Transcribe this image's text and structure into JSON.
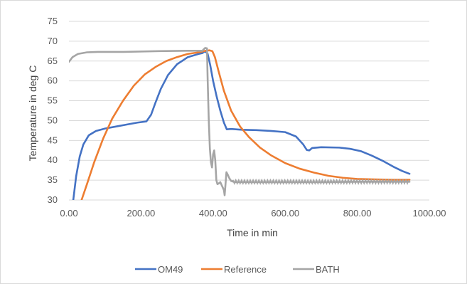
{
  "chart_data": {
    "type": "line",
    "title": "",
    "xlabel": "Time in min",
    "ylabel": "Temperature in deg C",
    "xlim": [
      0,
      1000
    ],
    "ylim": [
      30,
      75
    ],
    "x_ticks": [
      "0.00",
      "200.00",
      "400.00",
      "600.00",
      "800.00",
      "1000.00"
    ],
    "y_ticks": [
      "30",
      "35",
      "40",
      "45",
      "50",
      "55",
      "60",
      "65",
      "70",
      "75"
    ],
    "grid": "horizontal",
    "legend_position": "bottom",
    "series": [
      {
        "name": "OM49",
        "color": "#4472c4",
        "points": [
          [
            12,
            30
          ],
          [
            20,
            36
          ],
          [
            30,
            41
          ],
          [
            40,
            44
          ],
          [
            55,
            46.3
          ],
          [
            75,
            47.4
          ],
          [
            100,
            48
          ],
          [
            130,
            48.5
          ],
          [
            160,
            49
          ],
          [
            190,
            49.5
          ],
          [
            215,
            49.8
          ],
          [
            228,
            51.5
          ],
          [
            240,
            54.5
          ],
          [
            255,
            58
          ],
          [
            275,
            61.5
          ],
          [
            300,
            64.2
          ],
          [
            330,
            66
          ],
          [
            360,
            66.8
          ],
          [
            370,
            67
          ],
          [
            378,
            67.5
          ],
          [
            385,
            66.8
          ],
          [
            392,
            64
          ],
          [
            400,
            60
          ],
          [
            410,
            56
          ],
          [
            420,
            52.5
          ],
          [
            430,
            49.5
          ],
          [
            438,
            47.8
          ],
          [
            450,
            47.9
          ],
          [
            480,
            47.7
          ],
          [
            520,
            47.6
          ],
          [
            560,
            47.4
          ],
          [
            600,
            47.1
          ],
          [
            630,
            46
          ],
          [
            650,
            44
          ],
          [
            660,
            42.6
          ],
          [
            667,
            42.5
          ],
          [
            675,
            43.1
          ],
          [
            700,
            43.3
          ],
          [
            750,
            43.2
          ],
          [
            780,
            42.9
          ],
          [
            810,
            42.3
          ],
          [
            840,
            41.2
          ],
          [
            870,
            39.9
          ],
          [
            900,
            38.4
          ],
          [
            925,
            37.3
          ],
          [
            945,
            36.6
          ]
        ]
      },
      {
        "name": "Reference",
        "color": "#ed7d31",
        "points": [
          [
            35,
            30
          ],
          [
            50,
            34
          ],
          [
            70,
            39.5
          ],
          [
            95,
            45.5
          ],
          [
            120,
            50.5
          ],
          [
            150,
            55
          ],
          [
            180,
            58.8
          ],
          [
            210,
            61.6
          ],
          [
            240,
            63.5
          ],
          [
            270,
            65
          ],
          [
            300,
            66
          ],
          [
            330,
            66.8
          ],
          [
            360,
            67.2
          ],
          [
            380,
            67.6
          ],
          [
            390,
            67.7
          ],
          [
            398,
            67.5
          ],
          [
            405,
            66
          ],
          [
            415,
            62.5
          ],
          [
            430,
            57.5
          ],
          [
            450,
            52.5
          ],
          [
            475,
            48.5
          ],
          [
            500,
            45.8
          ],
          [
            530,
            43.2
          ],
          [
            560,
            41.3
          ],
          [
            600,
            39.3
          ],
          [
            640,
            37.9
          ],
          [
            680,
            36.9
          ],
          [
            720,
            36.1
          ],
          [
            760,
            35.6
          ],
          [
            800,
            35.3
          ],
          [
            850,
            35.2
          ],
          [
            900,
            35.1
          ],
          [
            945,
            35.1
          ]
        ]
      },
      {
        "name": "BATH",
        "color": "#a5a5a5",
        "points": [
          [
            0,
            64.8
          ],
          [
            10,
            66
          ],
          [
            25,
            66.8
          ],
          [
            50,
            67.2
          ],
          [
            80,
            67.3
          ],
          [
            150,
            67.3
          ],
          [
            250,
            67.5
          ],
          [
            330,
            67.6
          ],
          [
            370,
            67.6
          ],
          [
            378,
            68.3
          ],
          [
            383,
            68.2
          ],
          [
            385,
            60
          ],
          [
            388,
            50
          ],
          [
            391,
            43
          ],
          [
            394,
            39.5
          ],
          [
            397,
            38.2
          ],
          [
            400,
            41.5
          ],
          [
            403,
            42.5
          ],
          [
            406,
            40
          ],
          [
            409,
            35
          ],
          [
            412,
            34
          ],
          [
            416,
            34.2
          ],
          [
            420,
            34.5
          ],
          [
            425,
            33.5
          ],
          [
            430,
            32.5
          ],
          [
            432,
            31.2
          ],
          [
            434,
            33.5
          ],
          [
            437,
            37
          ],
          [
            440,
            36.5
          ],
          [
            445,
            35.5
          ],
          [
            450,
            34.8
          ],
          [
            460,
            34.5
          ],
          [
            470,
            34.5
          ],
          [
            500,
            34.5
          ],
          [
            600,
            34.5
          ],
          [
            700,
            34.5
          ],
          [
            800,
            34.6
          ],
          [
            945,
            34.6
          ]
        ]
      }
    ]
  }
}
